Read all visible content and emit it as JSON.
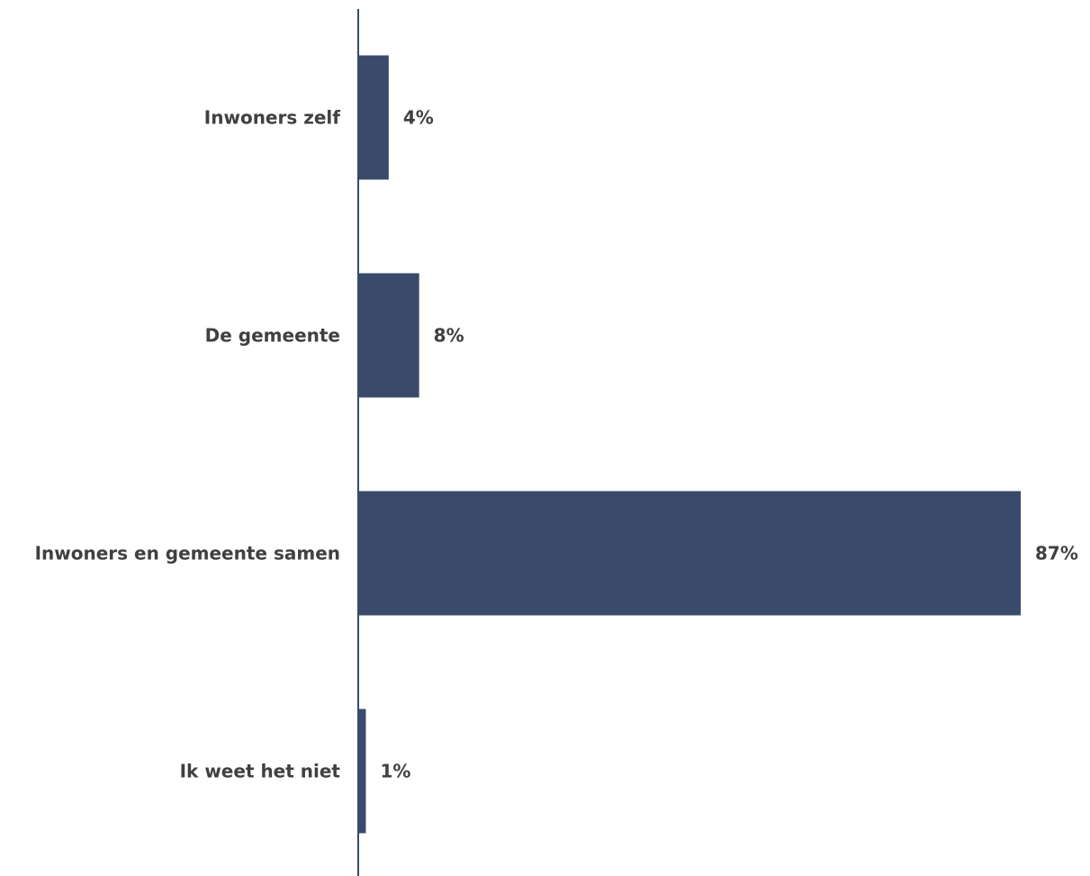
{
  "chart_data": {
    "type": "bar",
    "orientation": "horizontal",
    "categories": [
      "Inwoners zelf",
      "De gemeente",
      "Inwoners en gemeente samen",
      "Ik weet het niet"
    ],
    "values": [
      4,
      8,
      87,
      1
    ],
    "value_labels": [
      "4%",
      "8%",
      "87%",
      "1%"
    ],
    "unit": "%",
    "xlim": [
      0,
      87
    ],
    "grid": false,
    "legend": "none",
    "bar_color": "#3a4a6a",
    "text_color": "#404040",
    "axis_color": "#3a4a6a"
  }
}
